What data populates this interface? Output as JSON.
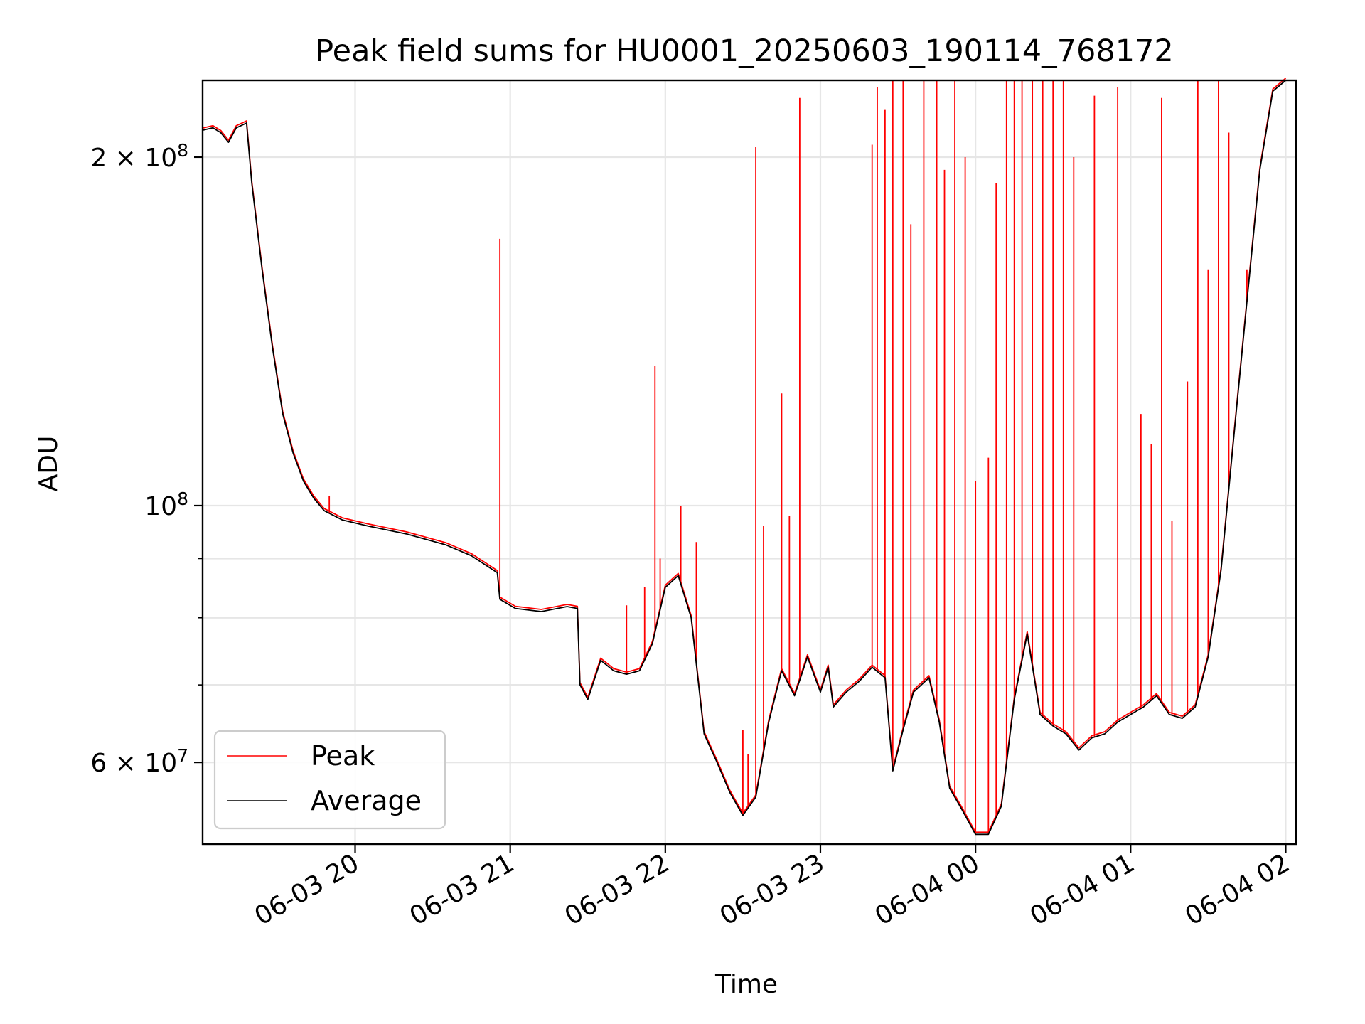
{
  "chart_data": {
    "type": "line",
    "title": "Peak field sums for HU0001_20250603_190114_768172",
    "xlabel": "Time",
    "ylabel": "ADU",
    "y_scale": "log",
    "ylim": [
      51000000,
      233000000
    ],
    "xlim": [
      "2025-06-03 19:01",
      "2025-06-04 02:04"
    ],
    "grid": true,
    "legend_position": "lower-left",
    "x_ticks": [
      {
        "t": "2025-06-03 20:00",
        "label": "06-03 20"
      },
      {
        "t": "2025-06-03 21:00",
        "label": "06-03 21"
      },
      {
        "t": "2025-06-03 22:00",
        "label": "06-03 22"
      },
      {
        "t": "2025-06-03 23:00",
        "label": "06-03 23"
      },
      {
        "t": "2025-06-04 00:00",
        "label": "06-04 00"
      },
      {
        "t": "2025-06-04 01:00",
        "label": "06-04 01"
      },
      {
        "t": "2025-06-04 02:00",
        "label": "06-04 02"
      }
    ],
    "y_major_ticks": [
      {
        "value": 60000000,
        "label_base": "6 × 10",
        "label_exp": "7"
      },
      {
        "value": 100000000,
        "label_base": "10",
        "label_exp": "8"
      },
      {
        "value": 200000000,
        "label_base": "2 × 10",
        "label_exp": "8"
      }
    ],
    "y_minor_ticks": [
      70000000,
      80000000,
      90000000
    ],
    "series": [
      {
        "name": "Average",
        "color": "#000000",
        "points": [
          [
            "2025-06-03 19:01",
            211000000
          ],
          [
            "2025-06-03 19:05",
            212000000
          ],
          [
            "2025-06-03 19:08",
            210000000
          ],
          [
            "2025-06-03 19:11",
            206000000
          ],
          [
            "2025-06-03 19:14",
            212000000
          ],
          [
            "2025-06-03 19:18",
            214000000
          ],
          [
            "2025-06-03 19:20",
            190000000
          ],
          [
            "2025-06-03 19:24",
            160000000
          ],
          [
            "2025-06-03 19:28",
            137000000
          ],
          [
            "2025-06-03 19:32",
            120000000
          ],
          [
            "2025-06-03 19:36",
            111000000
          ],
          [
            "2025-06-03 19:40",
            105000000
          ],
          [
            "2025-06-03 19:44",
            101500000
          ],
          [
            "2025-06-03 19:48",
            99000000
          ],
          [
            "2025-06-03 19:55",
            97200000
          ],
          [
            "2025-06-03 20:05",
            96000000
          ],
          [
            "2025-06-03 20:20",
            94500000
          ],
          [
            "2025-06-03 20:35",
            92500000
          ],
          [
            "2025-06-03 20:45",
            90500000
          ],
          [
            "2025-06-03 20:55",
            87500000
          ],
          [
            "2025-06-03 20:56",
            83000000
          ],
          [
            "2025-06-03 21:02",
            81500000
          ],
          [
            "2025-06-03 21:12",
            81000000
          ],
          [
            "2025-06-03 21:22",
            81800000
          ],
          [
            "2025-06-03 21:26",
            81500000
          ],
          [
            "2025-06-03 21:27",
            70000000
          ],
          [
            "2025-06-03 21:30",
            68000000
          ],
          [
            "2025-06-03 21:35",
            73500000
          ],
          [
            "2025-06-03 21:40",
            72000000
          ],
          [
            "2025-06-03 21:45",
            71500000
          ],
          [
            "2025-06-03 21:50",
            72000000
          ],
          [
            "2025-06-03 21:55",
            76000000
          ],
          [
            "2025-06-03 22:00",
            85000000
          ],
          [
            "2025-06-03 22:05",
            87000000
          ],
          [
            "2025-06-03 22:10",
            80000000
          ],
          [
            "2025-06-03 22:15",
            63500000
          ],
          [
            "2025-06-03 22:20",
            60000000
          ],
          [
            "2025-06-03 22:25",
            56500000
          ],
          [
            "2025-06-03 22:30",
            54000000
          ],
          [
            "2025-06-03 22:35",
            56000000
          ],
          [
            "2025-06-03 22:40",
            65000000
          ],
          [
            "2025-06-03 22:45",
            72000000
          ],
          [
            "2025-06-03 22:50",
            68500000
          ],
          [
            "2025-06-03 22:55",
            74000000
          ],
          [
            "2025-06-03 23:00",
            69000000
          ],
          [
            "2025-06-03 23:03",
            72500000
          ],
          [
            "2025-06-03 23:05",
            67000000
          ],
          [
            "2025-06-03 23:10",
            69000000
          ],
          [
            "2025-06-03 23:15",
            70500000
          ],
          [
            "2025-06-03 23:20",
            72500000
          ],
          [
            "2025-06-03 23:25",
            71000000
          ],
          [
            "2025-06-03 23:28",
            59000000
          ],
          [
            "2025-06-03 23:32",
            64000000
          ],
          [
            "2025-06-03 23:36",
            69000000
          ],
          [
            "2025-06-03 23:42",
            71000000
          ],
          [
            "2025-06-03 23:46",
            65000000
          ],
          [
            "2025-06-03 23:50",
            57000000
          ],
          [
            "2025-06-03 23:55",
            54500000
          ],
          [
            "2025-06-04 00:00",
            52000000
          ],
          [
            "2025-06-04 00:05",
            52000000
          ],
          [
            "2025-06-04 00:10",
            55000000
          ],
          [
            "2025-06-04 00:15",
            68000000
          ],
          [
            "2025-06-04 00:20",
            77500000
          ],
          [
            "2025-06-04 00:25",
            66000000
          ],
          [
            "2025-06-04 00:30",
            64500000
          ],
          [
            "2025-06-04 00:35",
            63500000
          ],
          [
            "2025-06-04 00:40",
            61500000
          ],
          [
            "2025-06-04 00:45",
            63000000
          ],
          [
            "2025-06-04 00:50",
            63500000
          ],
          [
            "2025-06-04 00:55",
            65000000
          ],
          [
            "2025-06-04 01:00",
            66000000
          ],
          [
            "2025-06-04 01:05",
            67000000
          ],
          [
            "2025-06-04 01:10",
            68500000
          ],
          [
            "2025-06-04 01:15",
            66000000
          ],
          [
            "2025-06-04 01:20",
            65500000
          ],
          [
            "2025-06-04 01:25",
            67000000
          ],
          [
            "2025-06-04 01:30",
            74000000
          ],
          [
            "2025-06-04 01:35",
            88000000
          ],
          [
            "2025-06-04 01:40",
            115000000
          ],
          [
            "2025-06-04 01:45",
            150000000
          ],
          [
            "2025-06-04 01:50",
            195000000
          ],
          [
            "2025-06-04 01:55",
            228000000
          ],
          [
            "2025-06-04 02:00",
            233000000
          ]
        ]
      },
      {
        "name": "Peak",
        "color": "#ff0000",
        "spikes": [
          [
            "2025-06-03 19:50",
            102000000
          ],
          [
            "2025-06-03 20:56",
            170000000
          ],
          [
            "2025-06-03 21:45",
            82000000
          ],
          [
            "2025-06-03 21:52",
            85000000
          ],
          [
            "2025-06-03 21:56",
            132000000
          ],
          [
            "2025-06-03 21:58",
            90000000
          ],
          [
            "2025-06-03 22:06",
            100000000
          ],
          [
            "2025-06-03 22:12",
            93000000
          ],
          [
            "2025-06-03 22:30",
            64000000
          ],
          [
            "2025-06-03 22:32",
            61000000
          ],
          [
            "2025-06-03 22:35",
            204000000
          ],
          [
            "2025-06-03 22:38",
            96000000
          ],
          [
            "2025-06-03 22:45",
            125000000
          ],
          [
            "2025-06-03 22:48",
            98000000
          ],
          [
            "2025-06-03 22:52",
            225000000
          ],
          [
            "2025-06-03 23:20",
            205000000
          ],
          [
            "2025-06-03 23:22",
            230000000
          ],
          [
            "2025-06-03 23:25",
            220000000
          ],
          [
            "2025-06-03 23:28",
            233000000
          ],
          [
            "2025-06-03 23:32",
            233000000
          ],
          [
            "2025-06-03 23:35",
            175000000
          ],
          [
            "2025-06-03 23:40",
            233000000
          ],
          [
            "2025-06-03 23:45",
            233000000
          ],
          [
            "2025-06-03 23:48",
            195000000
          ],
          [
            "2025-06-03 23:52",
            233000000
          ],
          [
            "2025-06-03 23:56",
            200000000
          ],
          [
            "2025-06-04 00:00",
            105000000
          ],
          [
            "2025-06-04 00:05",
            110000000
          ],
          [
            "2025-06-04 00:08",
            190000000
          ],
          [
            "2025-06-04 00:12",
            233000000
          ],
          [
            "2025-06-04 00:15",
            233000000
          ],
          [
            "2025-06-04 00:18",
            233000000
          ],
          [
            "2025-06-04 00:22",
            233000000
          ],
          [
            "2025-06-04 00:26",
            233000000
          ],
          [
            "2025-06-04 00:30",
            233000000
          ],
          [
            "2025-06-04 00:34",
            233000000
          ],
          [
            "2025-06-04 00:38",
            200000000
          ],
          [
            "2025-06-04 00:46",
            226000000
          ],
          [
            "2025-06-04 00:55",
            230000000
          ],
          [
            "2025-06-04 01:04",
            120000000
          ],
          [
            "2025-06-04 01:08",
            113000000
          ],
          [
            "2025-06-04 01:12",
            225000000
          ],
          [
            "2025-06-04 01:16",
            97000000
          ],
          [
            "2025-06-04 01:22",
            128000000
          ],
          [
            "2025-06-04 01:26",
            233000000
          ],
          [
            "2025-06-04 01:30",
            160000000
          ],
          [
            "2025-06-04 01:34",
            233000000
          ],
          [
            "2025-06-04 01:38",
            210000000
          ],
          [
            "2025-06-04 01:45",
            160000000
          ]
        ]
      }
    ]
  }
}
